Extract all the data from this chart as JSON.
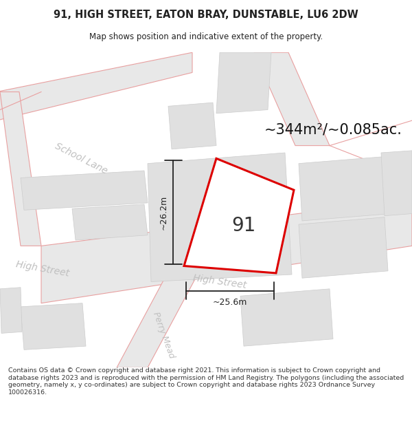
{
  "title_line1": "91, HIGH STREET, EATON BRAY, DUNSTABLE, LU6 2DW",
  "title_line2": "Map shows position and indicative extent of the property.",
  "area_text": "~344m²/~0.085ac.",
  "label_91": "91",
  "dim_v": "~26.2m",
  "dim_h": "~25.6m",
  "footer": "Contains OS data © Crown copyright and database right 2021. This information is subject to Crown copyright and database rights 2023 and is reproduced with the permission of HM Land Registry. The polygons (including the associated geometry, namely x, y co-ordinates) are subject to Crown copyright and database rights 2023 Ordnance Survey 100026316.",
  "map_bg": "#ffffff",
  "road_fill": "#e8e8e8",
  "road_stroke": "#e8a0a0",
  "building_fill": "#e0e0e0",
  "building_stroke": "#cccccc",
  "property_stroke": "#dd0000",
  "property_fill": "#ffffff",
  "road_label_color": "#c0c0c0",
  "dim_color": "#222222",
  "footer_color": "#333333",
  "title_color": "#222222"
}
